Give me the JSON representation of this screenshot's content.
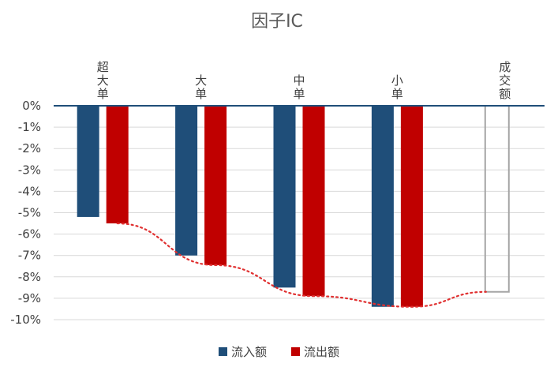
{
  "chart_data": {
    "type": "bar",
    "title": "因子IC",
    "categories": [
      "超大单",
      "大单",
      "中单",
      "小单",
      "成交额"
    ],
    "series": [
      {
        "name": "流入额",
        "values": [
          -5.2,
          -7.0,
          -8.5,
          -9.4,
          null
        ],
        "color": "#1f4e79"
      },
      {
        "name": "流出额",
        "values": [
          -5.5,
          -7.45,
          -8.9,
          -9.4,
          null
        ],
        "color": "#c00000"
      }
    ],
    "total_series": {
      "category": "成交额",
      "value": -8.7,
      "color": "#a6a6a6",
      "style": "outline"
    },
    "trend_line": {
      "style": "dotted",
      "color": "#e03030"
    },
    "yticks": [
      "0%",
      "-1%",
      "-2%",
      "-3%",
      "-4%",
      "-5%",
      "-6%",
      "-7%",
      "-8%",
      "-9%",
      "-10%"
    ],
    "ylim": [
      -10,
      0
    ],
    "grid": true,
    "legend_position": "bottom"
  }
}
